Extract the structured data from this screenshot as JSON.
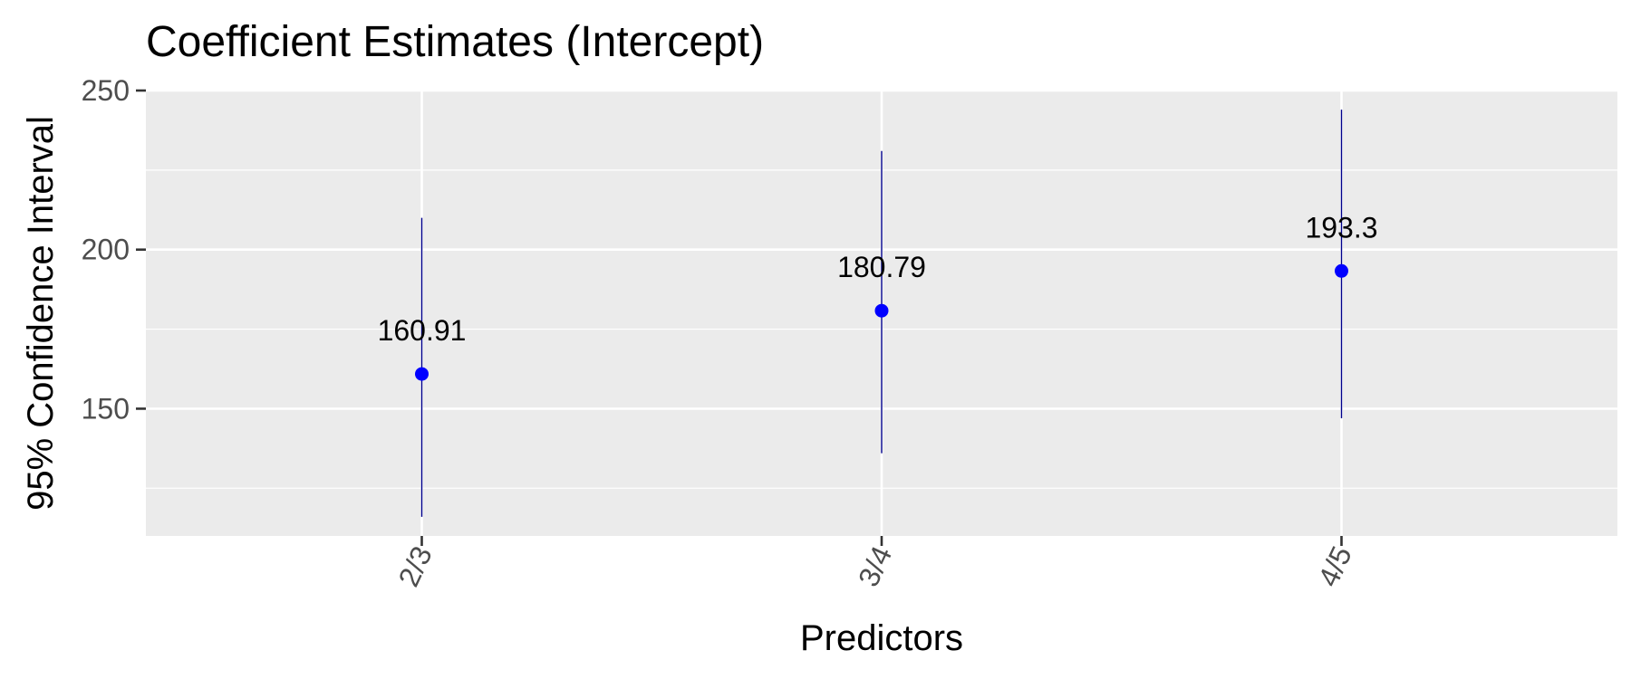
{
  "chart_data": {
    "type": "scatter",
    "title": "Coefficient Estimates (Intercept)",
    "xlabel": "Predictors",
    "ylabel": "95% Confidence Interval",
    "categories": [
      "2/3",
      "3/4",
      "4/5"
    ],
    "series": [
      {
        "values": [
          160.91,
          180.79,
          193.3
        ],
        "lower": [
          116,
          136,
          147
        ],
        "upper": [
          210,
          231,
          244
        ],
        "labels": [
          "160.91",
          "180.79",
          "193.3"
        ]
      }
    ],
    "ylim": [
      110,
      250
    ],
    "yticks": [
      150,
      200,
      250
    ],
    "ytick_labels": [
      "150",
      "200",
      "250"
    ],
    "grid": true,
    "legend": "none",
    "colors": {
      "point": "#0000ff",
      "errorbar": "#00008b",
      "panel": "#ebebeb",
      "grid": "#ffffff"
    }
  }
}
